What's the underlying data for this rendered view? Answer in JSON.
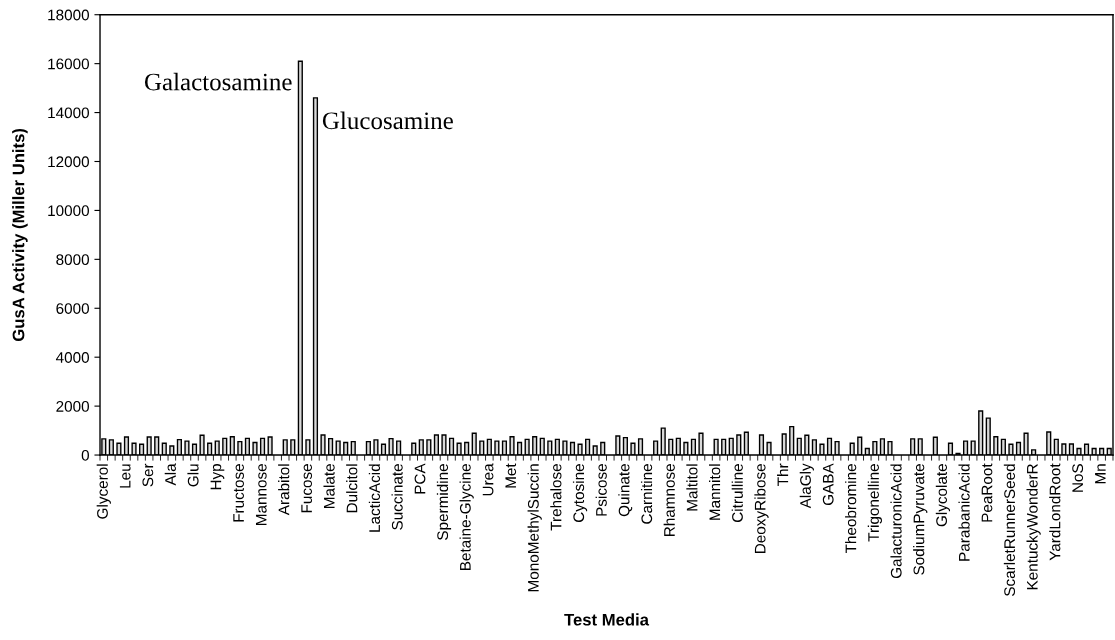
{
  "chart_data": {
    "type": "bar",
    "xlabel": "Test Media",
    "ylabel": "GusA Activity (Miller Units)",
    "categories": [
      "Glycerol",
      null,
      null,
      "Leu",
      null,
      null,
      "Ser",
      null,
      null,
      "Ala",
      null,
      null,
      "Glu",
      null,
      null,
      "Hyp",
      null,
      null,
      "Fructose",
      null,
      null,
      "Mannose",
      null,
      null,
      "Arabitol",
      null,
      null,
      "Fucose",
      null,
      null,
      "Malate",
      null,
      null,
      "Dulcitol",
      null,
      null,
      "LacticAcid",
      null,
      null,
      "Succinate",
      null,
      null,
      "PCA",
      null,
      null,
      "Spermidine",
      null,
      null,
      "Betaine-Glycine",
      null,
      null,
      "Urea",
      null,
      null,
      "Met",
      null,
      null,
      "MonoMethylSuccin",
      null,
      null,
      "Trehalose",
      null,
      null,
      "Cytosine",
      null,
      null,
      "Psicose",
      null,
      null,
      "Quinate",
      null,
      null,
      "Carnitine",
      null,
      null,
      "Rhamnose",
      null,
      null,
      "Maltitol",
      null,
      null,
      "Mannitol",
      null,
      null,
      "Citrulline",
      null,
      null,
      "DeoxyRibose",
      null,
      null,
      "Thr",
      null,
      null,
      "AlaGly",
      null,
      null,
      "GABA",
      null,
      null,
      "Theobromine",
      null,
      null,
      "Trigonelline",
      null,
      null,
      "GalacturonicAcid",
      null,
      null,
      "SodiumPyruvate",
      null,
      null,
      "Glycolate",
      null,
      null,
      "ParabanicAcid",
      null,
      null,
      "PeaRoot",
      null,
      null,
      "ScarletRunnerSeed",
      null,
      null,
      "KentuckyWonderR",
      null,
      null,
      "YardLondRoot",
      null,
      null,
      "NoS",
      null,
      null,
      "Mn",
      null
    ],
    "values": [
      660,
      620,
      480,
      740,
      480,
      440,
      740,
      740,
      480,
      370,
      630,
      570,
      440,
      810,
      480,
      570,
      680,
      750,
      550,
      680,
      510,
      680,
      740,
      null,
      620,
      620,
      16100,
      620,
      14600,
      820,
      670,
      570,
      510,
      550,
      null,
      550,
      620,
      440,
      670,
      570,
      null,
      480,
      620,
      620,
      820,
      820,
      680,
      480,
      510,
      890,
      570,
      640,
      570,
      570,
      750,
      510,
      640,
      750,
      680,
      570,
      640,
      570,
      510,
      440,
      640,
      370,
      510,
      null,
      780,
      710,
      480,
      660,
      null,
      570,
      1100,
      640,
      680,
      510,
      640,
      890,
      null,
      640,
      640,
      680,
      820,
      930,
      null,
      820,
      510,
      null,
      860,
      1160,
      680,
      810,
      620,
      440,
      680,
      550,
      null,
      480,
      730,
      270,
      550,
      660,
      550,
      null,
      null,
      660,
      660,
      null,
      730,
      null,
      480,
      70,
      570,
      570,
      1800,
      1510,
      750,
      640,
      440,
      510,
      890,
      210,
      null,
      940,
      640,
      450,
      450,
      270,
      440,
      270,
      270,
      270
    ],
    "color": "#d9d9d9",
    "ylim": [
      0,
      18000
    ],
    "yticks": [
      0,
      2000,
      4000,
      6000,
      8000,
      10000,
      12000,
      14000,
      16000,
      18000
    ],
    "annotations": [
      "Galactosamine",
      "Glucosamine"
    ]
  }
}
